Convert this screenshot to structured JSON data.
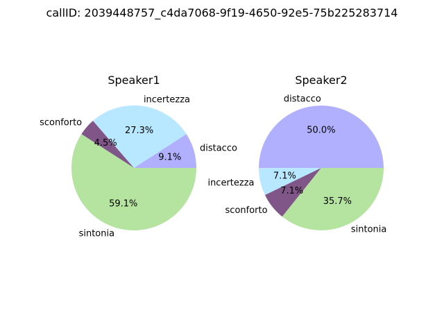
{
  "figure": {
    "title": "callID: 2039448757_c4da7068-9f19-4650-92e5-75b225283714"
  },
  "chart_data": [
    {
      "type": "pie",
      "title": "Speaker1",
      "start_angle_deg": 0,
      "direction": "counterclockwise",
      "slices": [
        {
          "label": "distacco",
          "percent": 9.1,
          "pct_label": "9.1%",
          "color": "#b0b0ff"
        },
        {
          "label": "incertezza",
          "percent": 27.3,
          "pct_label": "27.3%",
          "color": "#b8e8ff"
        },
        {
          "label": "sconforto",
          "percent": 4.5,
          "pct_label": "4.5%",
          "color": "#805588"
        },
        {
          "label": "sintonia",
          "percent": 59.1,
          "pct_label": "59.1%",
          "color": "#b5e3a0"
        }
      ]
    },
    {
      "type": "pie",
      "title": "Speaker2",
      "start_angle_deg": 0,
      "direction": "counterclockwise",
      "slices": [
        {
          "label": "distacco",
          "percent": 50.0,
          "pct_label": "50.0%",
          "color": "#b0b0ff"
        },
        {
          "label": "incertezza",
          "percent": 7.1,
          "pct_label": "7.1%",
          "color": "#b8e8ff"
        },
        {
          "label": "sconforto",
          "percent": 7.1,
          "pct_label": "7.1%",
          "color": "#805588"
        },
        {
          "label": "sintonia",
          "percent": 35.7,
          "pct_label": "35.7%",
          "color": "#b5e3a0"
        }
      ]
    }
  ]
}
